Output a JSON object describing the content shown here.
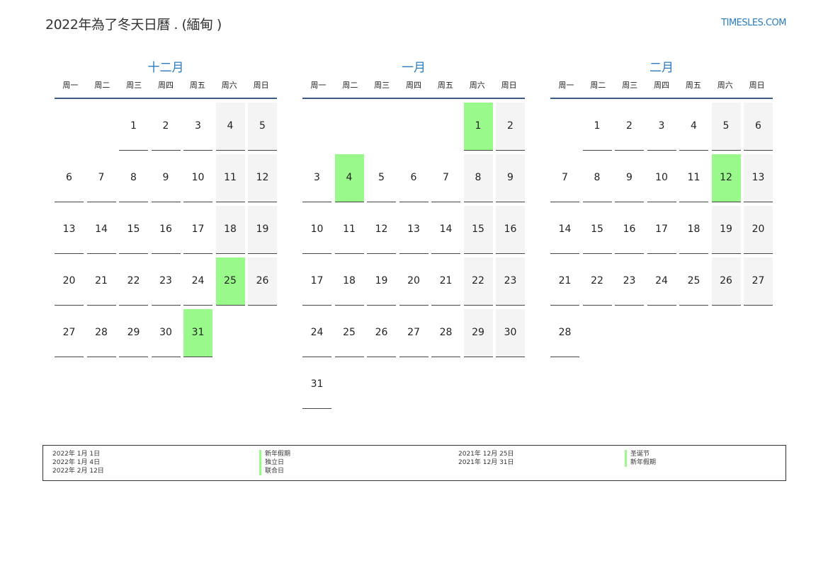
{
  "header": {
    "title": "2022年為了冬天日曆 . (緬甸 )",
    "logo": "TIMESLES.COM"
  },
  "weekdays": [
    "周一",
    "周二",
    "周三",
    "周四",
    "周五",
    "周六",
    "周日"
  ],
  "colors": {
    "accent": "#2a7bc0",
    "holiday": "#99f98a",
    "weekend": "#f4f4f4"
  },
  "months": [
    {
      "name": "十二月",
      "start_weekday": 3,
      "days": 31,
      "holidays": [
        25,
        31
      ]
    },
    {
      "name": "一月",
      "start_weekday": 6,
      "days": 31,
      "holidays": [
        1,
        4
      ]
    },
    {
      "name": "二月",
      "start_weekday": 2,
      "days": 28,
      "holidays": [
        12
      ]
    }
  ],
  "legend": {
    "left": [
      {
        "date": "2022年 1月 1日",
        "name": "新年假期"
      },
      {
        "date": "2022年 1月 4日",
        "name": "独立日"
      },
      {
        "date": "2022年 2月 12日",
        "name": "联合日"
      }
    ],
    "right": [
      {
        "date": "2021年 12月 25日",
        "name": "圣诞节"
      },
      {
        "date": "2021年 12月 31日",
        "name": "新年假期"
      }
    ]
  }
}
